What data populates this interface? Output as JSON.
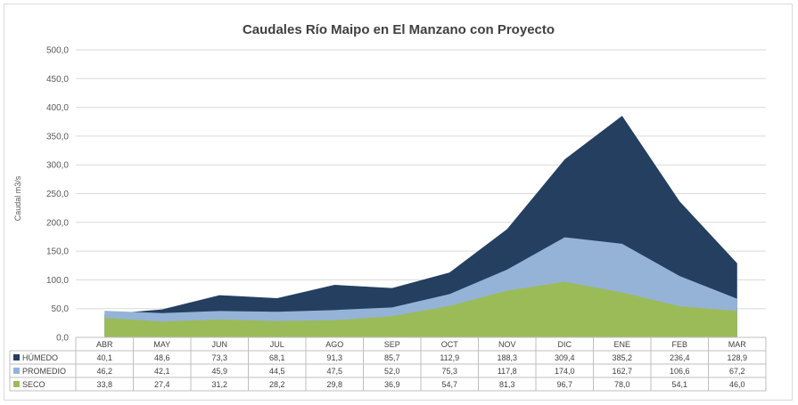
{
  "chart_data": {
    "type": "area",
    "title": "Caudales Río Maipo en El Manzano con Proyecto",
    "ylabel": "Caudal m3/s",
    "xlabel": "",
    "ylim": [
      0,
      500
    ],
    "yticks": [
      "500,0",
      "450,0",
      "400,0",
      "350,0",
      "300,0",
      "250,0",
      "200,0",
      "150,0",
      "100,0",
      "50,0",
      "0,0"
    ],
    "categories": [
      "ABR",
      "MAY",
      "JUN",
      "JUL",
      "AGO",
      "SEP",
      "OCT",
      "NOV",
      "DIC",
      "ENE",
      "FEB",
      "MAR"
    ],
    "grid": true,
    "legend": "data-table",
    "series": [
      {
        "name": "HÚMEDO",
        "color": "#243f60",
        "values": [
          40.1,
          48.6,
          73.3,
          68.1,
          91.3,
          85.7,
          112.9,
          188.3,
          309.4,
          385.2,
          236.4,
          128.9
        ],
        "labels": [
          "40,1",
          "48,6",
          "73,3",
          "68,1",
          "91,3",
          "85,7",
          "112,9",
          "188,3",
          "309,4",
          "385,2",
          "236,4",
          "128,9"
        ]
      },
      {
        "name": "PROMEDIO",
        "color": "#95b3d7",
        "values": [
          46.2,
          42.1,
          45.9,
          44.5,
          47.5,
          52.0,
          75.3,
          117.8,
          174.0,
          162.7,
          106.6,
          67.2
        ],
        "labels": [
          "46,2",
          "42,1",
          "45,9",
          "44,5",
          "47,5",
          "52,0",
          "75,3",
          "117,8",
          "174,0",
          "162,7",
          "106,6",
          "67,2"
        ]
      },
      {
        "name": "SECO",
        "color": "#9bbb59",
        "values": [
          33.8,
          27.4,
          31.2,
          28.2,
          29.8,
          36.9,
          54.7,
          81.3,
          96.7,
          78.0,
          54.1,
          46.0
        ],
        "labels": [
          "33,8",
          "27,4",
          "31,2",
          "28,2",
          "29,8",
          "36,9",
          "54,7",
          "81,3",
          "96,7",
          "78,0",
          "54,1",
          "46,0"
        ]
      }
    ]
  }
}
